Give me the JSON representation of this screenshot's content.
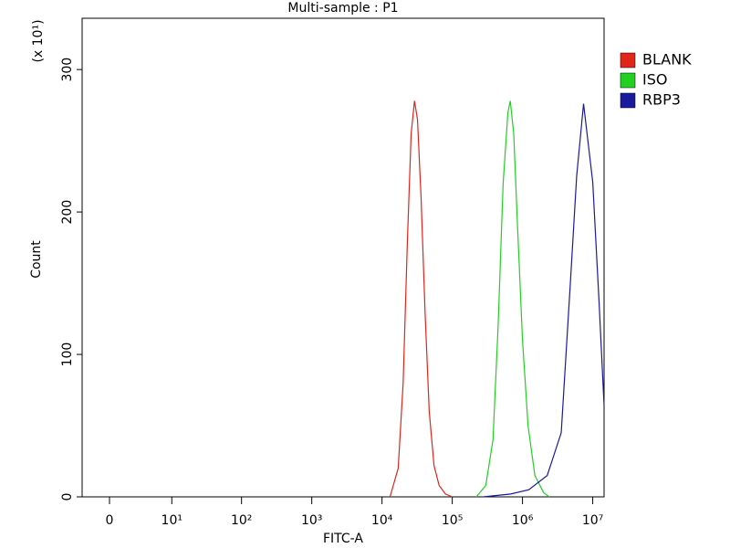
{
  "chart_data": {
    "type": "line",
    "title": "Multi-sample : P1",
    "x_label": "FITC-A",
    "y_label": "Count",
    "y_multiplier": "(x 10¹)",
    "xscale": "log",
    "xlim": [
      -2.7,
      14500000
    ],
    "ylim": [
      0,
      336
    ],
    "xticks": [
      0,
      {
        "value": 10,
        "label": "10¹"
      },
      {
        "value": 100,
        "label": "10²"
      },
      {
        "value": 1000,
        "label": "10³"
      },
      {
        "value": 10000,
        "label": "10⁴"
      },
      {
        "value": 100000,
        "label": "10⁵"
      },
      {
        "value": 1000000,
        "label": "10⁶"
      },
      {
        "value": 10000000,
        "label": "10⁷"
      }
    ],
    "yticks": [
      0,
      100,
      200,
      300
    ],
    "series": [
      {
        "name": "BLANK",
        "color": "#e0251b",
        "x": [
          13000,
          17000,
          20000,
          23000,
          26000,
          29000,
          32000,
          36000,
          41000,
          47000,
          55000,
          65000,
          80000,
          100000
        ],
        "values": [
          0,
          20,
          80,
          180,
          255,
          278,
          265,
          210,
          130,
          60,
          22,
          8,
          2,
          0
        ]
      },
      {
        "name": "ISO",
        "color": "#22d022",
        "x": [
          220000,
          300000,
          380000,
          450000,
          530000,
          620000,
          670000,
          750000,
          850000,
          1000000,
          1200000,
          1500000,
          2000000,
          2400000
        ],
        "values": [
          0,
          8,
          40,
          120,
          220,
          270,
          278,
          255,
          190,
          110,
          50,
          15,
          3,
          0
        ]
      },
      {
        "name": "RBP3",
        "color": "#1a1a9c",
        "x": [
          276000,
          680000,
          1230000,
          2250000,
          3560000,
          4800000,
          5900000,
          7400000,
          10000000,
          12300000,
          14500000
        ],
        "values": [
          0,
          2,
          5,
          15,
          45,
          150,
          225,
          276,
          221,
          137,
          64
        ]
      }
    ]
  }
}
